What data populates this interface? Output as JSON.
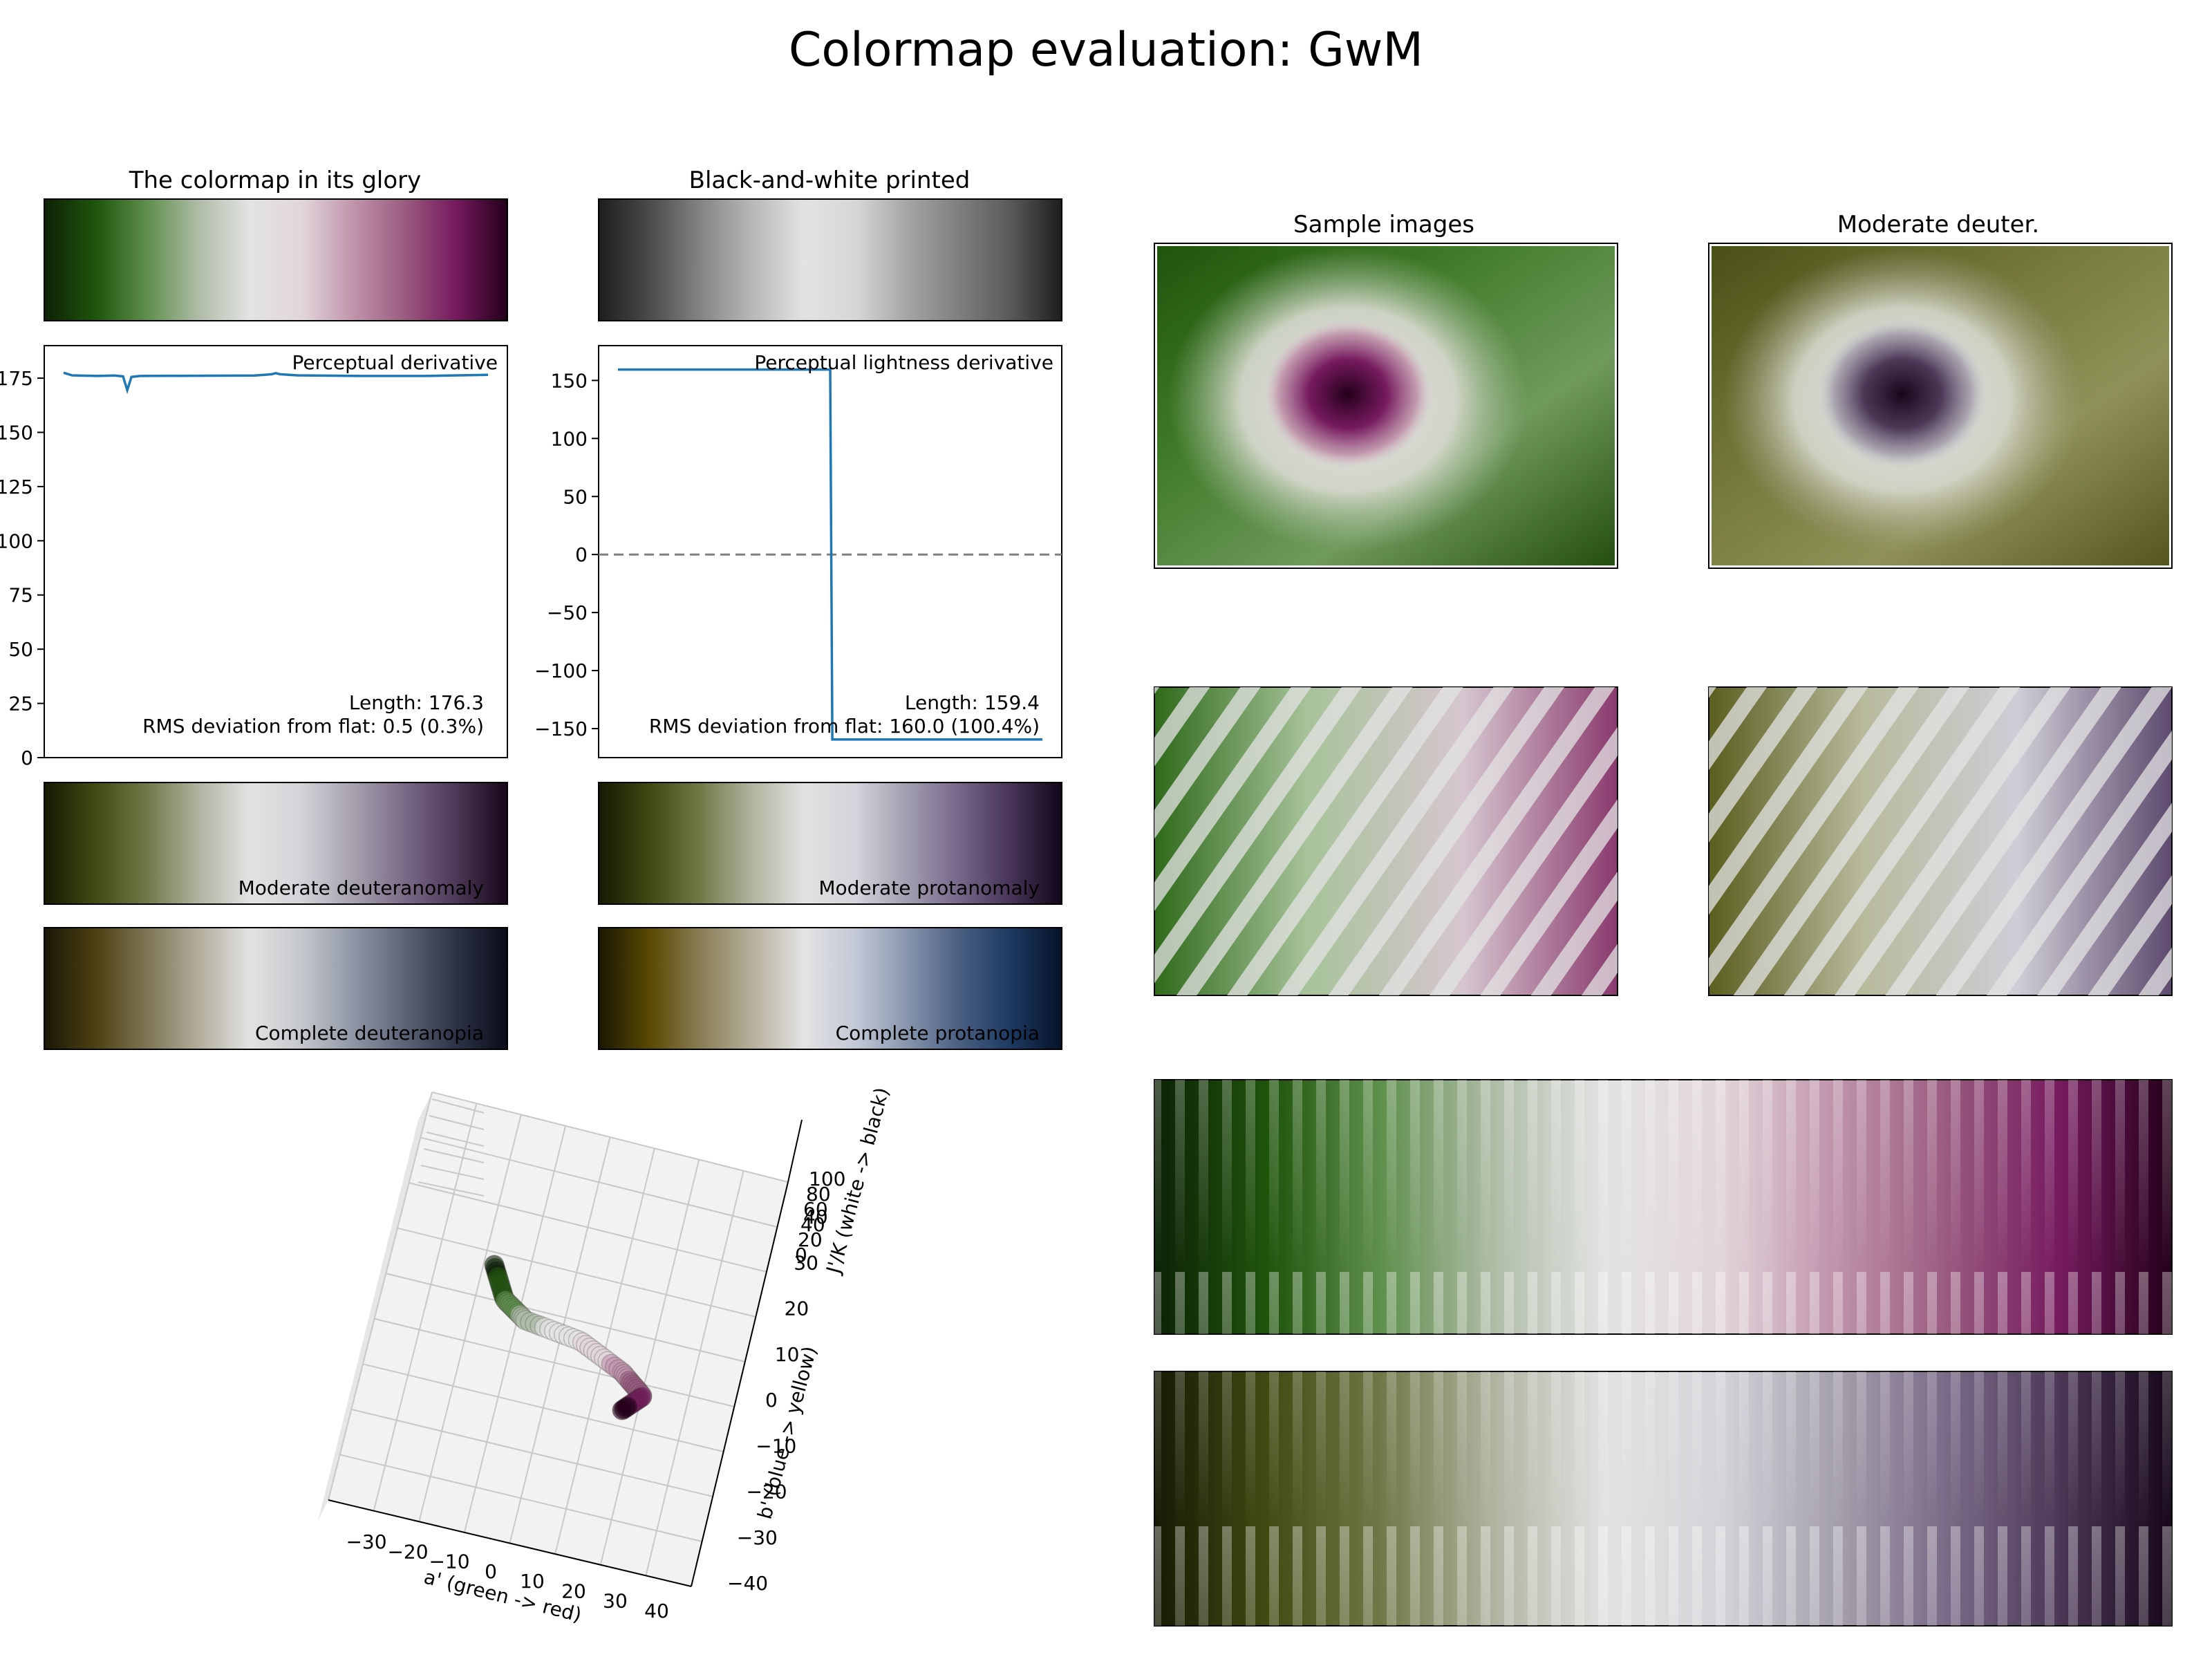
{
  "figure": {
    "title": "Colormap evaluation: GwM",
    "panel_titles": {
      "glory": "The colormap in its glory",
      "bw": "Black-and-white printed",
      "samples": "Sample images",
      "sample_deuter": "Moderate deuter."
    }
  },
  "colors": {
    "line": "#1f77b4",
    "zero_line": "#808080",
    "pane": "#f2f2f2",
    "grid": "#c8c8c8"
  },
  "colormaps": {
    "glory": [
      "#0c2206",
      "#1f540b",
      "#5f8f4c",
      "#aebca6",
      "#e3e3e3",
      "#e2d6db",
      "#c094ab",
      "#9a5b80",
      "#761a5e",
      "#24001a"
    ],
    "bw": [
      "#1d1d1d",
      "#4b4b4b",
      "#858585",
      "#b8b8b8",
      "#e3e3e3",
      "#d6d6d6",
      "#a5a5a5",
      "#7f7f7f",
      "#5a5a5a",
      "#1d1d1d"
    ],
    "mod_deuteranomaly": [
      "#161a04",
      "#424a12",
      "#717848",
      "#b0b3a0",
      "#e2e2e2",
      "#d4d3d8",
      "#a6a1ae",
      "#7a6a87",
      "#4d3857",
      "#17061a"
    ],
    "mod_protanomaly": [
      "#141a03",
      "#3f4912",
      "#737a48",
      "#b2b4a0",
      "#e2e2e2",
      "#d3d3da",
      "#a29db0",
      "#766789",
      "#483458",
      "#12061a"
    ],
    "deuteranopia": [
      "#191605",
      "#4d4112",
      "#7e7554",
      "#b2ad9c",
      "#e2e2e2",
      "#c4c7cc",
      "#8f96a5",
      "#5c6478",
      "#2c3347",
      "#0a0c18"
    ],
    "protanopia": [
      "#1a1602",
      "#5a4a02",
      "#8a7e56",
      "#b6b09c",
      "#e3e3e3",
      "#c2c8d6",
      "#8795ad",
      "#4a5f82",
      "#1d3a62",
      "#061228"
    ]
  },
  "strips": [
    {
      "key": "mod_deuteranomaly",
      "label": "Moderate deuteranomaly"
    },
    {
      "key": "mod_protanomaly",
      "label": "Moderate protanomaly"
    },
    {
      "key": "deuteranopia",
      "label": "Complete deuteranopia"
    },
    {
      "key": "protanopia",
      "label": "Complete protanopia"
    }
  ],
  "chart_data": [
    {
      "type": "line",
      "title": "",
      "panel_label": "Perceptual derivative",
      "ylim": [
        0,
        190
      ],
      "yticks": [
        0,
        25,
        50,
        75,
        100,
        125,
        150,
        175
      ],
      "ytick_labels": [
        "0",
        "25",
        "50",
        "75",
        "100",
        "125",
        "150",
        "175"
      ],
      "series": [
        {
          "x": [
            0,
            0.02,
            0.08,
            0.12,
            0.14,
            0.15,
            0.16,
            0.18,
            0.3,
            0.45,
            0.49,
            0.5,
            0.51,
            0.55,
            0.7,
            0.85,
            1.0
          ],
          "y": [
            177.5,
            176.3,
            176.0,
            176.2,
            175.8,
            169.5,
            175.6,
            176.0,
            176.1,
            176.2,
            176.8,
            177.3,
            176.8,
            176.3,
            176.0,
            176.0,
            176.5
          ]
        }
      ],
      "annotations": [
        "Length: 176.3",
        "RMS deviation from flat: 0.5 (0.3%)"
      ]
    },
    {
      "type": "line",
      "title": "",
      "panel_label": "Perceptual lightness derivative",
      "ylim": [
        -175,
        180
      ],
      "yticks": [
        -150,
        -100,
        -50,
        0,
        50,
        100,
        150
      ],
      "ytick_labels": [
        "−150",
        "−100",
        "−50",
        "0",
        "50",
        "100",
        "150"
      ],
      "zero_line": true,
      "series": [
        {
          "x": [
            0,
            0.5,
            0.505,
            1.0
          ],
          "y": [
            159.4,
            159.4,
            -159.4,
            -159.4
          ]
        }
      ],
      "annotations": [
        "Length: 159.4",
        "RMS deviation from flat: 160.0 (100.4%)"
      ]
    },
    {
      "type": "scatter",
      "title": "",
      "projection": "3d",
      "xlabel": "a' (green -> red)",
      "ylabel": "b' (blue -> yellow)",
      "zlabel": "J'/K (white -> black)",
      "x_ticks": [
        "−30",
        "−20",
        "−10",
        "0",
        "10",
        "20",
        "30",
        "40"
      ],
      "y_ticks": [
        "−40",
        "−30",
        "−20",
        "−10",
        "0",
        "10",
        "20",
        "30",
        "40"
      ],
      "z_ticks": [
        "0",
        "20",
        "40",
        "60",
        "80",
        "100"
      ]
    }
  ]
}
